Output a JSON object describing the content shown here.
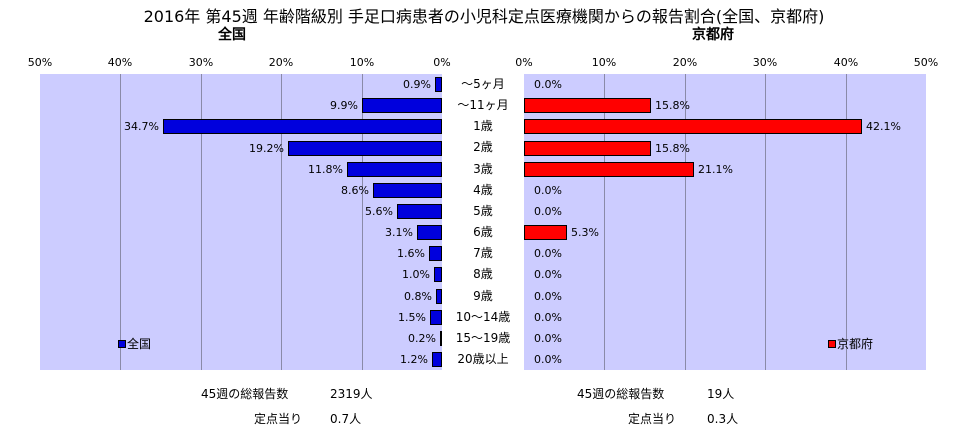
{
  "title": "2016年 第45週 年齢階級別 手足口病患者の小児科定点医療機関からの報告割合(全国、京都府)",
  "chart_data": {
    "type": "bar",
    "categories": [
      "～5ヶ月",
      "～11ヶ月",
      "1歳",
      "2歳",
      "3歳",
      "4歳",
      "5歳",
      "6歳",
      "7歳",
      "8歳",
      "9歳",
      "10～14歳",
      "15～19歳",
      "20歳以上"
    ],
    "panels": [
      {
        "title": "全国",
        "legend": "全国",
        "color": "#0000dd",
        "direction": "left",
        "xlim": [
          0,
          50
        ],
        "ticks": [
          "50%",
          "40%",
          "30%",
          "20%",
          "10%",
          "0%"
        ],
        "values": [
          0.9,
          9.9,
          34.7,
          19.2,
          11.8,
          8.6,
          5.6,
          3.1,
          1.6,
          1.0,
          0.8,
          1.5,
          0.2,
          1.2
        ],
        "labels": [
          "0.9%",
          "9.9%",
          "34.7%",
          "19.2%",
          "11.8%",
          "8.6%",
          "5.6%",
          "3.1%",
          "1.6%",
          "1.0%",
          "0.8%",
          "1.5%",
          "0.2%",
          "1.2%"
        ]
      },
      {
        "title": "京都府",
        "legend": "京都府",
        "color": "#ff0000",
        "direction": "right",
        "xlim": [
          0,
          50
        ],
        "ticks": [
          "0%",
          "10%",
          "20%",
          "30%",
          "40%",
          "50%"
        ],
        "values": [
          0.0,
          15.8,
          42.1,
          15.8,
          21.1,
          0.0,
          0.0,
          5.3,
          0.0,
          0.0,
          0.0,
          0.0,
          0.0,
          0.0
        ],
        "labels": [
          "0.0%",
          "15.8%",
          "42.1%",
          "15.8%",
          "21.1%",
          "0.0%",
          "0.0%",
          "5.3%",
          "0.0%",
          "0.0%",
          "0.0%",
          "0.0%",
          "0.0%",
          "0.0%"
        ]
      }
    ]
  },
  "stats": {
    "national": {
      "total_label": "45週の総報告数",
      "total_value": "2319人",
      "per_label": "定点当り",
      "per_value": "0.7人"
    },
    "kyoto": {
      "total_label": "45週の総報告数",
      "total_value": "19人",
      "per_label": "定点当り",
      "per_value": "0.3人"
    }
  }
}
